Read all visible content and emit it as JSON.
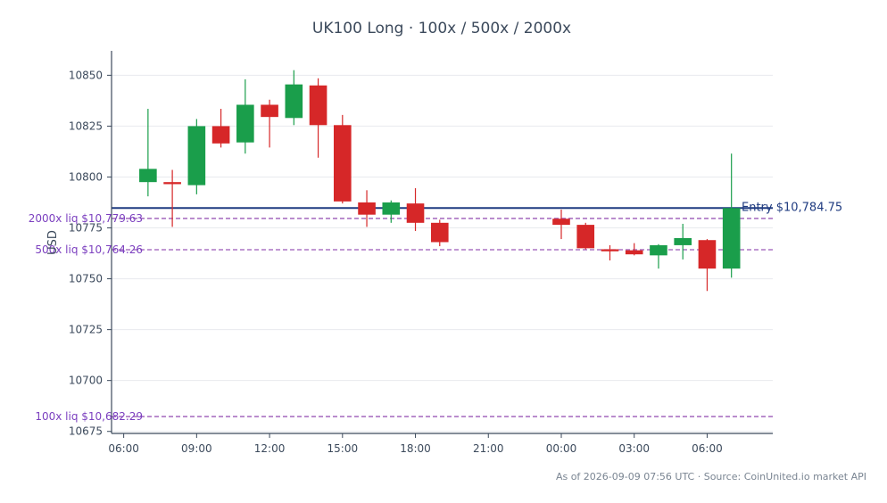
{
  "chart_data": {
    "type": "candlestick",
    "title": "UK100 Long · 100x / 500x / 2000x",
    "ylabel": "USD",
    "xlabel": "",
    "ylim": [
      10674,
      10862
    ],
    "x_range_hours": [
      5.5,
      32.7
    ],
    "y_ticks": [
      10675,
      10700,
      10725,
      10750,
      10775,
      10800,
      10825,
      10850
    ],
    "y_tick_labels": [
      "10675",
      "10700",
      "10725",
      "10750",
      "10775",
      "10800",
      "10825",
      "10850"
    ],
    "x_ticks": [
      6,
      9,
      12,
      15,
      18,
      21,
      24,
      27,
      30
    ],
    "x_tick_labels": [
      "06:00",
      "09:00",
      "12:00",
      "15:00",
      "18:00",
      "21:00",
      "00:00",
      "03:00",
      "06:00"
    ],
    "grid": "horizontal",
    "colors": {
      "up": "#1a9e4b",
      "down": "#d62728",
      "entry": "#1f3b80",
      "liquidation": "#9b59b6"
    },
    "candles": [
      {
        "t": 7,
        "open": 10797.5,
        "high": 10833.5,
        "low": 10790.5,
        "close": 10804.0
      },
      {
        "t": 8,
        "open": 10797.5,
        "high": 10803.5,
        "low": 10775.5,
        "close": 10796.5
      },
      {
        "t": 9,
        "open": 10796.0,
        "high": 10828.5,
        "low": 10791.5,
        "close": 10825.0
      },
      {
        "t": 10,
        "open": 10825.0,
        "high": 10833.5,
        "low": 10814.5,
        "close": 10816.5
      },
      {
        "t": 11,
        "open": 10817.0,
        "high": 10848.0,
        "low": 10811.5,
        "close": 10835.5
      },
      {
        "t": 12,
        "open": 10835.5,
        "high": 10838.0,
        "low": 10814.5,
        "close": 10829.5
      },
      {
        "t": 13,
        "open": 10829.0,
        "high": 10852.5,
        "low": 10825.5,
        "close": 10845.5
      },
      {
        "t": 14,
        "open": 10845.0,
        "high": 10848.5,
        "low": 10809.5,
        "close": 10825.5
      },
      {
        "t": 15,
        "open": 10825.5,
        "high": 10830.5,
        "low": 10787.0,
        "close": 10788.0
      },
      {
        "t": 16,
        "open": 10787.5,
        "high": 10793.5,
        "low": 10775.5,
        "close": 10781.5
      },
      {
        "t": 17,
        "open": 10781.5,
        "high": 10788.5,
        "low": 10777.5,
        "close": 10787.5
      },
      {
        "t": 18,
        "open": 10787.0,
        "high": 10794.5,
        "low": 10773.5,
        "close": 10777.5
      },
      {
        "t": 19,
        "open": 10777.5,
        "high": 10779.0,
        "low": 10766.0,
        "close": 10768.0
      },
      {
        "t": 24,
        "open": 10779.5,
        "high": 10784.0,
        "low": 10769.5,
        "close": 10776.5
      },
      {
        "t": 25,
        "open": 10776.5,
        "high": 10777.5,
        "low": 10764.5,
        "close": 10765.0
      },
      {
        "t": 26,
        "open": 10764.5,
        "high": 10766.5,
        "low": 10759.0,
        "close": 10763.5
      },
      {
        "t": 27,
        "open": 10764.0,
        "high": 10767.5,
        "low": 10761.5,
        "close": 10762.0
      },
      {
        "t": 28,
        "open": 10761.5,
        "high": 10767.0,
        "low": 10755.0,
        "close": 10766.5
      },
      {
        "t": 29,
        "open": 10766.5,
        "high": 10777.0,
        "low": 10759.5,
        "close": 10770.0
      },
      {
        "t": 30,
        "open": 10769.0,
        "high": 10769.5,
        "low": 10744.0,
        "close": 10755.0
      },
      {
        "t": 31,
        "open": 10755.0,
        "high": 10811.5,
        "low": 10750.5,
        "close": 10784.75
      }
    ],
    "entry": {
      "value": 10784.75,
      "label": "Entry $10,784.75"
    },
    "liquidations": [
      {
        "value": 10779.63,
        "label": "2000x liq $10,779.63"
      },
      {
        "value": 10764.26,
        "label": "500x liq $10,764.26"
      },
      {
        "value": 10682.29,
        "label": "100x liq $10,682.29"
      }
    ]
  },
  "footer": "As of 2026-09-09 07:56 UTC · Source: CoinUnited.io market API"
}
